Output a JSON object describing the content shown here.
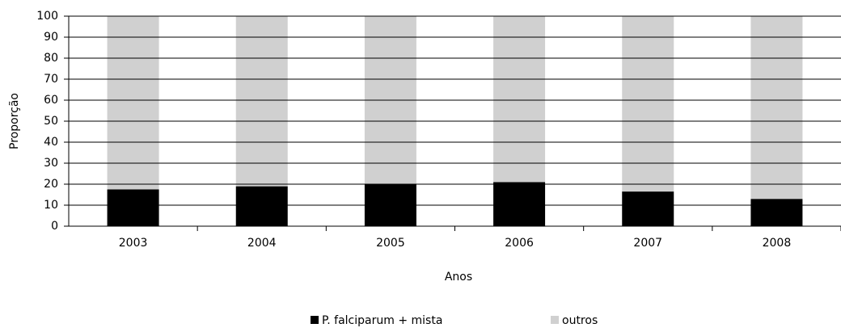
{
  "chart_data": {
    "type": "stacked_bar",
    "categories": [
      "2003",
      "2004",
      "2005",
      "2006",
      "2007",
      "2008"
    ],
    "series": [
      {
        "name": "P. falciparum + mista",
        "color": "#000000",
        "values": [
          17.5,
          19,
          20,
          21,
          16.5,
          13
        ]
      },
      {
        "name": "outros",
        "color": "#d0d0d0",
        "values": [
          82.5,
          81,
          80,
          79,
          83.5,
          87
        ]
      }
    ],
    "xlabel": "Anos",
    "ylabel": "Proporção",
    "ylim": [
      0,
      100
    ],
    "yticks": [
      0,
      10,
      20,
      30,
      40,
      50,
      60,
      70,
      80,
      90,
      100
    ],
    "grid": true
  }
}
